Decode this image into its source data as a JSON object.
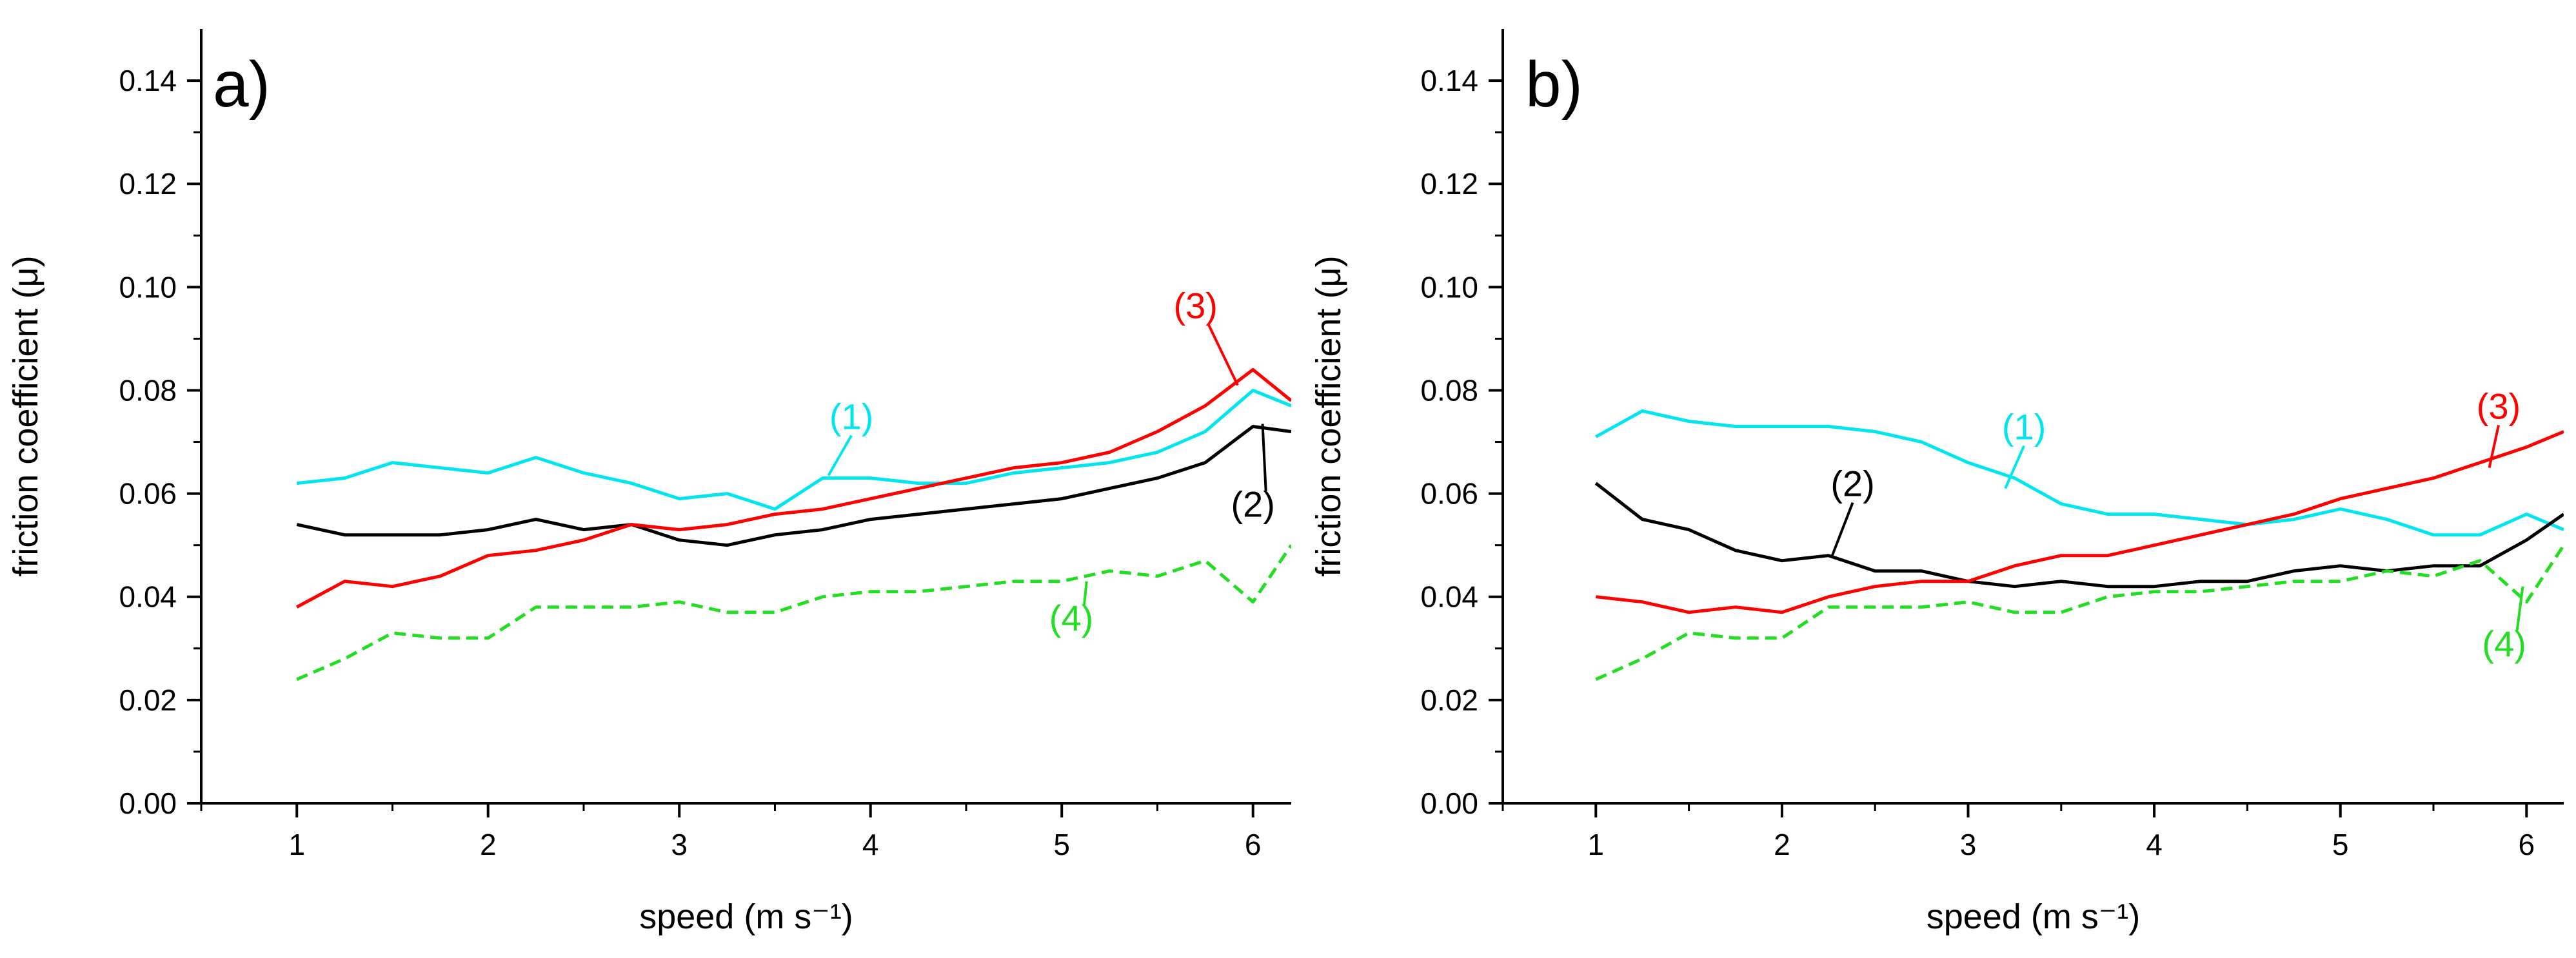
{
  "chart_data": [
    {
      "type": "line",
      "panel_label": "a)",
      "xlabel": "speed (m s⁻¹)",
      "ylabel": "friction coefficient (μ)",
      "xlim": [
        0.5,
        6.2
      ],
      "ylim": [
        0.0,
        0.15
      ],
      "xticks": [
        1,
        2,
        3,
        4,
        5,
        6
      ],
      "yticks": [
        0.0,
        0.02,
        0.04,
        0.06,
        0.08,
        0.1,
        0.12,
        0.14
      ],
      "ytick_labels": [
        "0.00",
        "0.02",
        "0.04",
        "0.06",
        "0.08",
        "0.10",
        "0.12",
        "0.14"
      ],
      "grid": false,
      "series": [
        {
          "name": "(1)",
          "color": "#00e5ee",
          "dash": "solid",
          "x": [
            1.0,
            1.25,
            1.5,
            1.75,
            2.0,
            2.25,
            2.5,
            2.75,
            3.0,
            3.25,
            3.5,
            3.75,
            4.0,
            4.25,
            4.5,
            4.75,
            5.0,
            5.25,
            5.5,
            5.75,
            6.0,
            6.2
          ],
          "y": [
            0.062,
            0.063,
            0.066,
            0.065,
            0.064,
            0.067,
            0.064,
            0.062,
            0.059,
            0.06,
            0.057,
            0.063,
            0.063,
            0.062,
            0.062,
            0.064,
            0.065,
            0.066,
            0.068,
            0.072,
            0.08,
            0.077
          ]
        },
        {
          "name": "(2)",
          "color": "#000000",
          "dash": "solid",
          "x": [
            1.0,
            1.25,
            1.5,
            1.75,
            2.0,
            2.25,
            2.5,
            2.75,
            3.0,
            3.25,
            3.5,
            3.75,
            4.0,
            4.25,
            4.5,
            4.75,
            5.0,
            5.25,
            5.5,
            5.75,
            6.0,
            6.2
          ],
          "y": [
            0.054,
            0.052,
            0.052,
            0.052,
            0.053,
            0.055,
            0.053,
            0.054,
            0.051,
            0.05,
            0.052,
            0.053,
            0.055,
            0.056,
            0.057,
            0.058,
            0.059,
            0.061,
            0.063,
            0.066,
            0.073,
            0.072
          ]
        },
        {
          "name": "(3)",
          "color": "#ff0000",
          "dash": "solid",
          "x": [
            1.0,
            1.25,
            1.5,
            1.75,
            2.0,
            2.25,
            2.5,
            2.75,
            3.0,
            3.25,
            3.5,
            3.75,
            4.0,
            4.25,
            4.5,
            4.75,
            5.0,
            5.25,
            5.5,
            5.75,
            6.0,
            6.2
          ],
          "y": [
            0.038,
            0.043,
            0.042,
            0.044,
            0.048,
            0.049,
            0.051,
            0.054,
            0.053,
            0.054,
            0.056,
            0.057,
            0.059,
            0.061,
            0.063,
            0.065,
            0.066,
            0.068,
            0.072,
            0.077,
            0.084,
            0.078
          ]
        },
        {
          "name": "(4)",
          "color": "#22dd22",
          "dash": "dashed",
          "x": [
            1.0,
            1.25,
            1.5,
            1.75,
            2.0,
            2.25,
            2.5,
            2.75,
            3.0,
            3.25,
            3.5,
            3.75,
            4.0,
            4.25,
            4.5,
            4.75,
            5.0,
            5.25,
            5.5,
            5.75,
            6.0,
            6.2
          ],
          "y": [
            0.024,
            0.028,
            0.033,
            0.032,
            0.032,
            0.038,
            0.038,
            0.038,
            0.039,
            0.037,
            0.037,
            0.04,
            0.041,
            0.041,
            0.042,
            0.043,
            0.043,
            0.045,
            0.044,
            0.047,
            0.039,
            0.05
          ]
        }
      ],
      "annotations": [
        {
          "text": "(1)",
          "color": "#00e5ee",
          "x": 3.9,
          "y": 0.0725,
          "pointer_to": [
            3.78,
            0.0635
          ]
        },
        {
          "text": "(2)",
          "color": "#000000",
          "x": 6.0,
          "y": 0.0555,
          "pointer_to": [
            6.05,
            0.0735
          ]
        },
        {
          "text": "(3)",
          "color": "#ff0000",
          "x": 5.7,
          "y": 0.094,
          "pointer_to": [
            5.92,
            0.081
          ]
        },
        {
          "text": "(4)",
          "color": "#22dd22",
          "x": 5.05,
          "y": 0.0335,
          "pointer_to": [
            5.13,
            0.043
          ]
        }
      ]
    },
    {
      "type": "line",
      "panel_label": "b)",
      "xlabel": "speed (m s⁻¹)",
      "ylabel": "friction coefficient (μ)",
      "xlim": [
        0.5,
        6.2
      ],
      "ylim": [
        0.0,
        0.15
      ],
      "xticks": [
        1,
        2,
        3,
        4,
        5,
        6
      ],
      "yticks": [
        0.0,
        0.02,
        0.04,
        0.06,
        0.08,
        0.1,
        0.12,
        0.14
      ],
      "ytick_labels": [
        "0.00",
        "0.02",
        "0.04",
        "0.06",
        "0.08",
        "0.10",
        "0.12",
        "0.14"
      ],
      "grid": false,
      "series": [
        {
          "name": "(1)",
          "color": "#00e5ee",
          "dash": "solid",
          "x": [
            1.0,
            1.25,
            1.5,
            1.75,
            2.0,
            2.25,
            2.5,
            2.75,
            3.0,
            3.25,
            3.5,
            3.75,
            4.0,
            4.25,
            4.5,
            4.75,
            5.0,
            5.25,
            5.5,
            5.75,
            6.0,
            6.2
          ],
          "y": [
            0.071,
            0.076,
            0.074,
            0.073,
            0.073,
            0.073,
            0.072,
            0.07,
            0.066,
            0.063,
            0.058,
            0.056,
            0.056,
            0.055,
            0.054,
            0.055,
            0.057,
            0.055,
            0.052,
            0.052,
            0.056,
            0.053
          ]
        },
        {
          "name": "(2)",
          "color": "#000000",
          "dash": "solid",
          "x": [
            1.0,
            1.25,
            1.5,
            1.75,
            2.0,
            2.25,
            2.5,
            2.75,
            3.0,
            3.25,
            3.5,
            3.75,
            4.0,
            4.25,
            4.5,
            4.75,
            5.0,
            5.25,
            5.5,
            5.75,
            6.0,
            6.2
          ],
          "y": [
            0.062,
            0.055,
            0.053,
            0.049,
            0.047,
            0.048,
            0.045,
            0.045,
            0.043,
            0.042,
            0.043,
            0.042,
            0.042,
            0.043,
            0.043,
            0.045,
            0.046,
            0.045,
            0.046,
            0.046,
            0.051,
            0.056
          ]
        },
        {
          "name": "(3)",
          "color": "#ff0000",
          "dash": "solid",
          "x": [
            1.0,
            1.25,
            1.5,
            1.75,
            2.0,
            2.25,
            2.5,
            2.75,
            3.0,
            3.25,
            3.5,
            3.75,
            4.0,
            4.25,
            4.5,
            4.75,
            5.0,
            5.25,
            5.5,
            5.75,
            6.0,
            6.2
          ],
          "y": [
            0.04,
            0.039,
            0.037,
            0.038,
            0.037,
            0.04,
            0.042,
            0.043,
            0.043,
            0.046,
            0.048,
            0.048,
            0.05,
            0.052,
            0.054,
            0.056,
            0.059,
            0.061,
            0.063,
            0.066,
            0.069,
            0.072
          ]
        },
        {
          "name": "(4)",
          "color": "#22dd22",
          "dash": "dashed",
          "x": [
            1.0,
            1.25,
            1.5,
            1.75,
            2.0,
            2.25,
            2.5,
            2.75,
            3.0,
            3.25,
            3.5,
            3.75,
            4.0,
            4.25,
            4.5,
            4.75,
            5.0,
            5.25,
            5.5,
            5.75,
            6.0,
            6.2
          ],
          "y": [
            0.024,
            0.028,
            0.033,
            0.032,
            0.032,
            0.038,
            0.038,
            0.038,
            0.039,
            0.037,
            0.037,
            0.04,
            0.041,
            0.041,
            0.042,
            0.043,
            0.043,
            0.045,
            0.044,
            0.047,
            0.039,
            0.05
          ]
        }
      ],
      "annotations": [
        {
          "text": "(1)",
          "color": "#00e5ee",
          "x": 3.3,
          "y": 0.0705,
          "pointer_to": [
            3.2,
            0.061
          ]
        },
        {
          "text": "(2)",
          "color": "#000000",
          "x": 2.38,
          "y": 0.0595,
          "pointer_to": [
            2.27,
            0.048
          ]
        },
        {
          "text": "(3)",
          "color": "#ff0000",
          "x": 5.85,
          "y": 0.0745,
          "pointer_to": [
            5.8,
            0.065
          ]
        },
        {
          "text": "(4)",
          "color": "#22dd22",
          "x": 5.88,
          "y": 0.0285,
          "pointer_to": [
            5.98,
            0.042
          ]
        }
      ]
    }
  ]
}
